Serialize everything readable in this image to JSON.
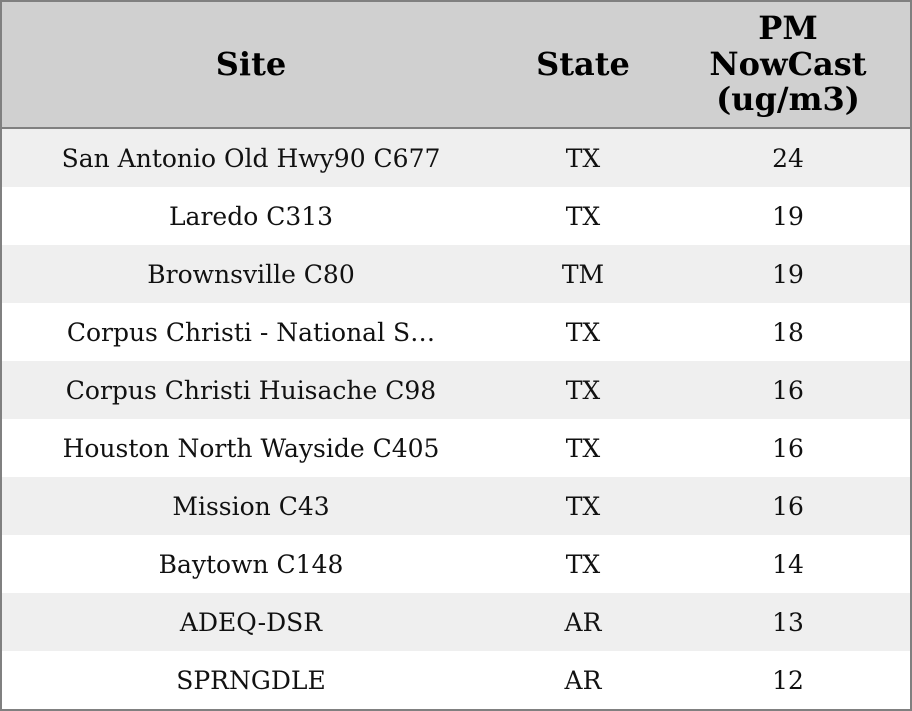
{
  "table": {
    "header": [
      "Site",
      "State",
      "PM NowCast (ug/m3)"
    ],
    "rows": [
      [
        "San Antonio Old Hwy90 C677",
        "TX",
        24
      ],
      [
        "Laredo C313",
        "TX",
        19
      ],
      [
        "Brownsville C80",
        "TM",
        19
      ],
      [
        "Corpus Christi - National S…",
        "TX",
        18
      ],
      [
        "Corpus Christi Huisache C98",
        "TX",
        16
      ],
      [
        "Houston North Wayside C405",
        "TX",
        16
      ],
      [
        "Mission C43",
        "TX",
        16
      ],
      [
        "Baytown C148",
        "TX",
        14
      ],
      [
        "ADEQ-DSR",
        "AR",
        13
      ],
      [
        "SPRNGDLE",
        "AR",
        12
      ]
    ]
  }
}
